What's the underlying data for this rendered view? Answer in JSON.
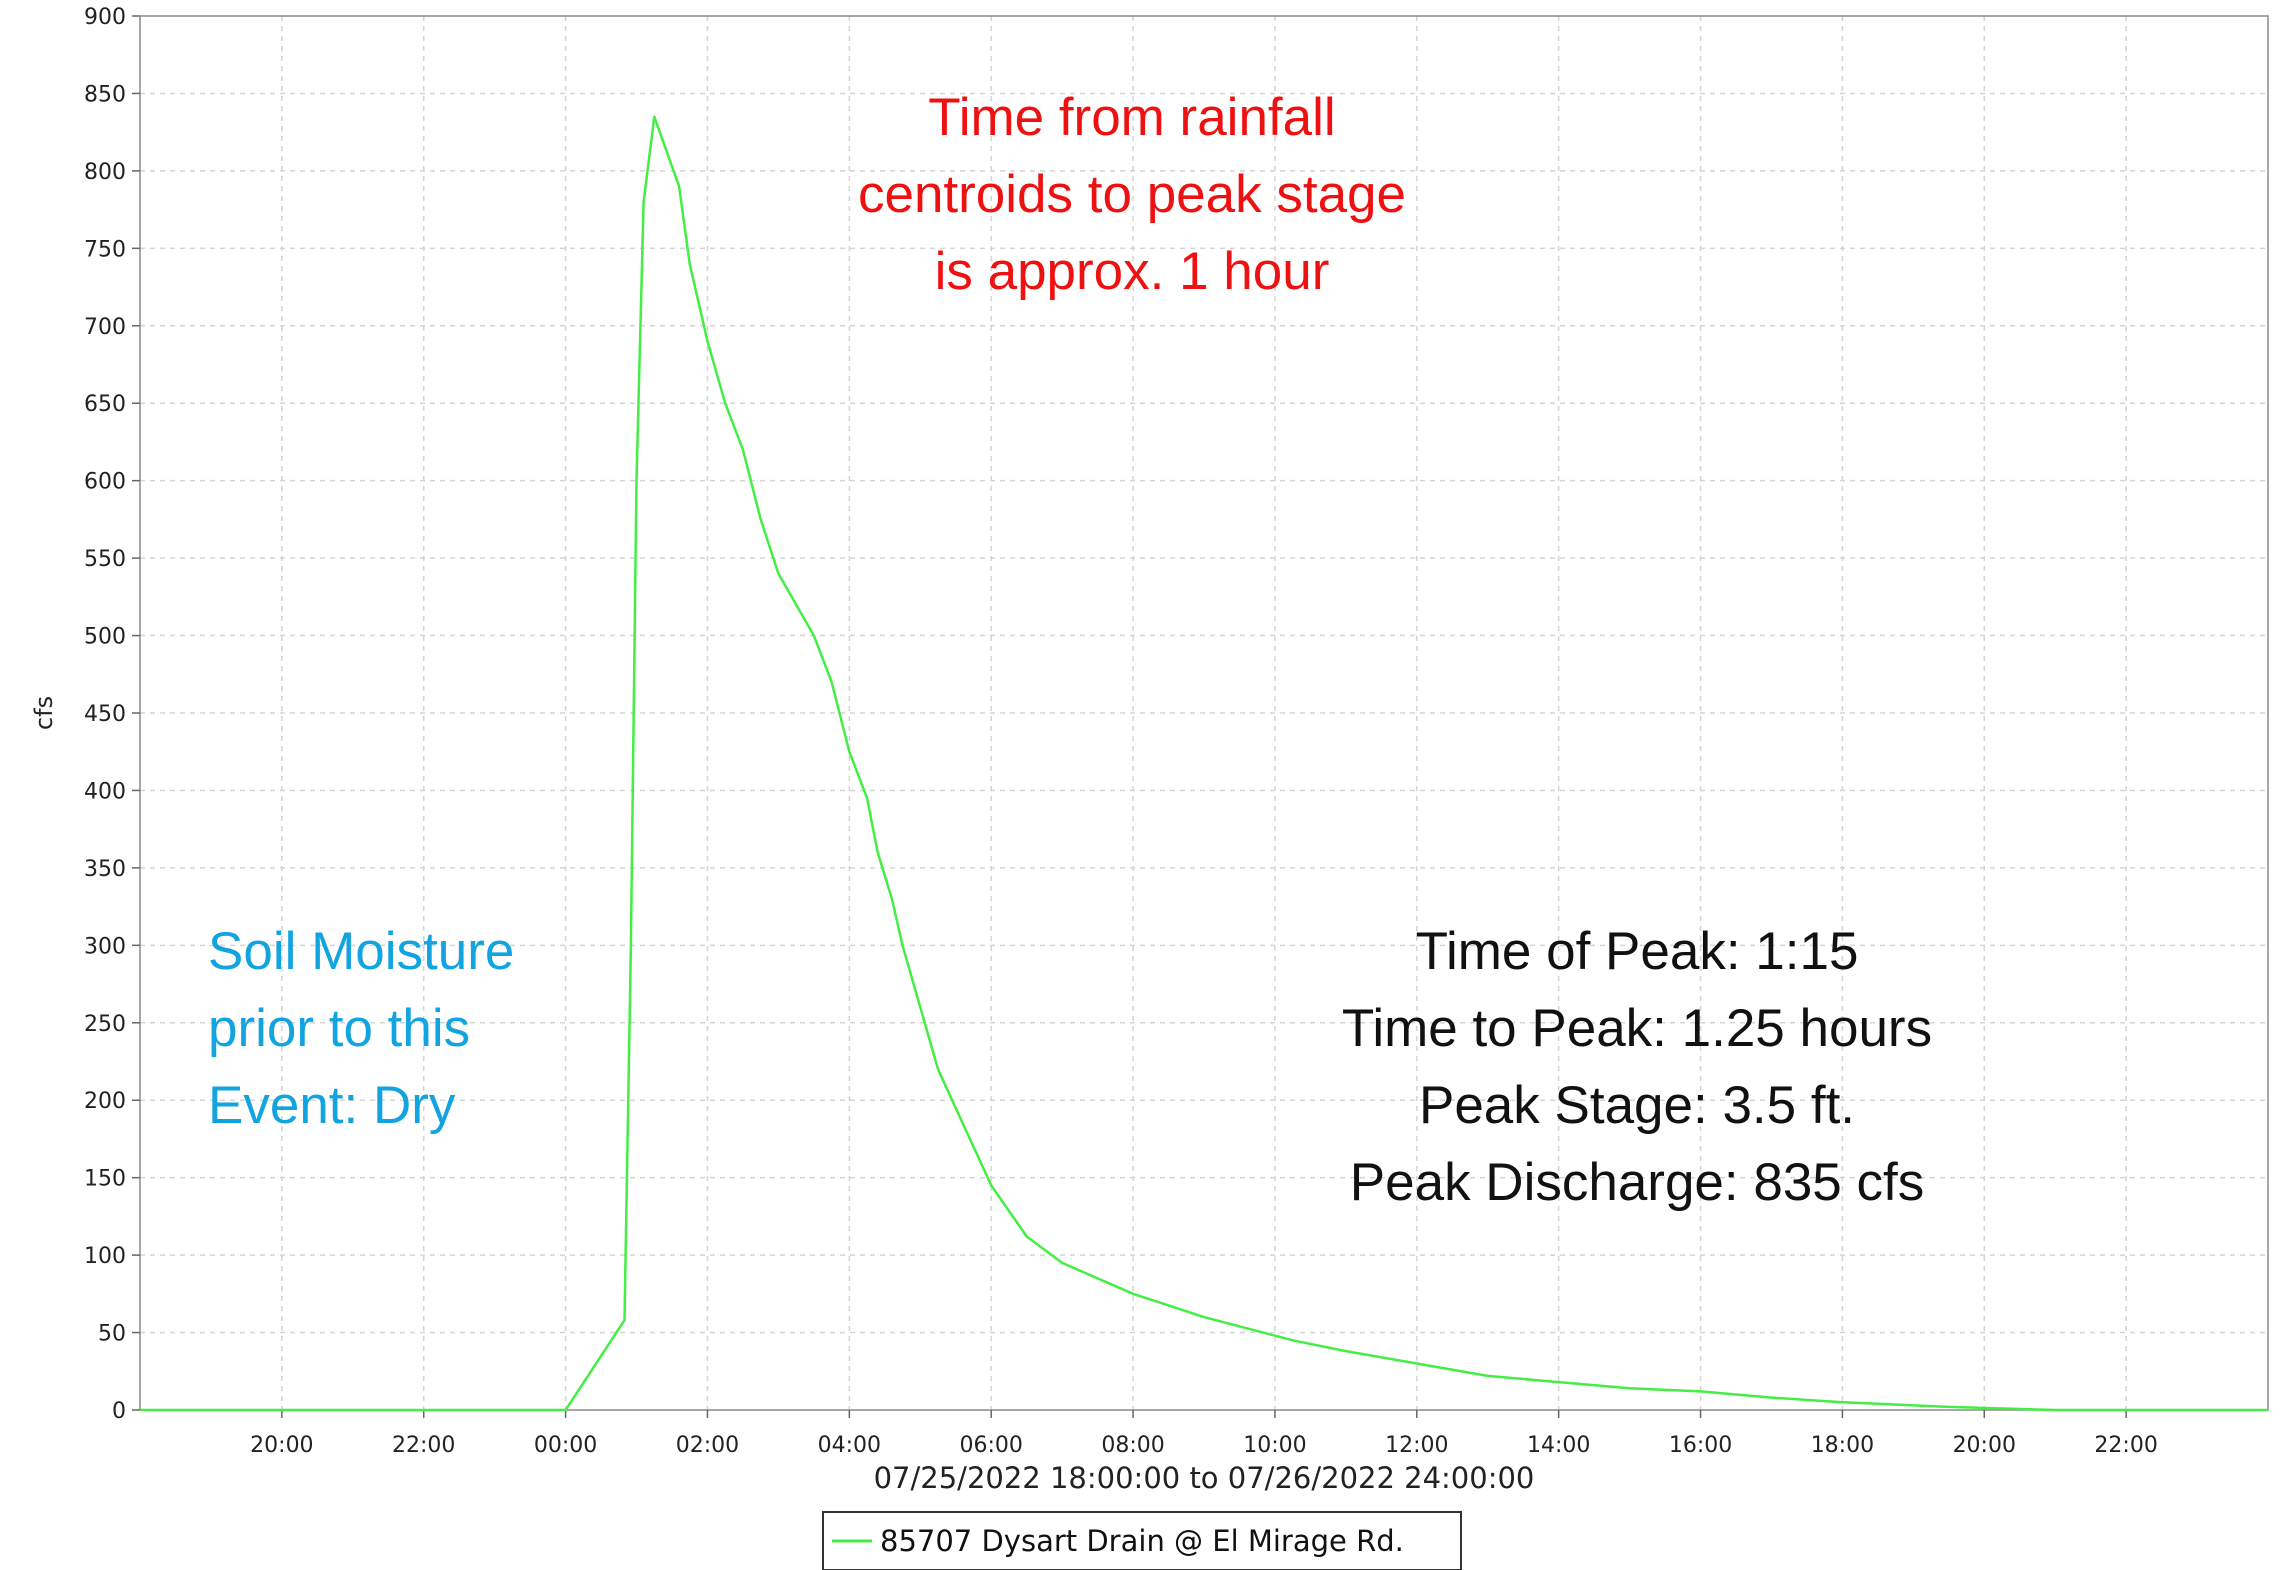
{
  "chart_data": {
    "type": "line",
    "xlabel": "07/25/2022 18:00:00 to 07/26/2022 24:00:00",
    "ylabel": "cfs",
    "x_range_hours": [
      18,
      48
    ],
    "ylim": [
      0,
      900
    ],
    "y_ticks": [
      0,
      50,
      100,
      150,
      200,
      250,
      300,
      350,
      400,
      450,
      500,
      550,
      600,
      650,
      700,
      750,
      800,
      850,
      900
    ],
    "x_ticks": [
      {
        "hour": 20,
        "label": "20:00"
      },
      {
        "hour": 22,
        "label": "22:00"
      },
      {
        "hour": 24,
        "label": "00:00"
      },
      {
        "hour": 26,
        "label": "02:00"
      },
      {
        "hour": 28,
        "label": "04:00"
      },
      {
        "hour": 30,
        "label": "06:00"
      },
      {
        "hour": 32,
        "label": "08:00"
      },
      {
        "hour": 34,
        "label": "10:00"
      },
      {
        "hour": 36,
        "label": "12:00"
      },
      {
        "hour": 38,
        "label": "14:00"
      },
      {
        "hour": 40,
        "label": "16:00"
      },
      {
        "hour": 42,
        "label": "18:00"
      },
      {
        "hour": 44,
        "label": "20:00"
      },
      {
        "hour": 46,
        "label": "22:00"
      }
    ],
    "grid": true,
    "legend_position": "bottom-center",
    "series": [
      {
        "name": "85707 Dysart Drain @ El Mirage Rd.",
        "color": "#44ee44",
        "points": [
          [
            18,
            0
          ],
          [
            24,
            0
          ],
          [
            24.83,
            58
          ],
          [
            24.92,
            300
          ],
          [
            25.0,
            600
          ],
          [
            25.1,
            780
          ],
          [
            25.25,
            835
          ],
          [
            25.6,
            790
          ],
          [
            25.75,
            740
          ],
          [
            26.0,
            690
          ],
          [
            26.25,
            650
          ],
          [
            26.5,
            620
          ],
          [
            26.75,
            575
          ],
          [
            27.0,
            540
          ],
          [
            27.5,
            500
          ],
          [
            27.75,
            470
          ],
          [
            28.0,
            425
          ],
          [
            28.25,
            395
          ],
          [
            28.4,
            360
          ],
          [
            28.6,
            330
          ],
          [
            28.75,
            300
          ],
          [
            29.0,
            260
          ],
          [
            29.25,
            220
          ],
          [
            29.5,
            195
          ],
          [
            29.75,
            170
          ],
          [
            30.0,
            145
          ],
          [
            30.5,
            112
          ],
          [
            31.0,
            95
          ],
          [
            32.0,
            75
          ],
          [
            33.0,
            60
          ],
          [
            34.25,
            45
          ],
          [
            35.0,
            38
          ],
          [
            36.0,
            30
          ],
          [
            37.0,
            22
          ],
          [
            38.0,
            18
          ],
          [
            39.0,
            14
          ],
          [
            40.0,
            12
          ],
          [
            41.0,
            8
          ],
          [
            42.0,
            5
          ],
          [
            43.5,
            2
          ],
          [
            45.0,
            0
          ],
          [
            48.0,
            0
          ]
        ]
      }
    ],
    "annotations": {
      "rainfall": {
        "color": "#ee1111",
        "lines": [
          "Time from rainfall",
          "centroids to peak stage",
          "is approx. 1 hour"
        ]
      },
      "soil": {
        "color": "#11a4e0",
        "lines": [
          "Soil Moisture",
          "prior to this",
          "Event: Dry"
        ]
      },
      "peak": {
        "color": "#111111",
        "lines": [
          "Time of Peak: 1:15",
          "Time to Peak: 1.25 hours",
          "Peak Stage: 3.5 ft.",
          "Peak Discharge: 835 cfs"
        ]
      }
    }
  }
}
